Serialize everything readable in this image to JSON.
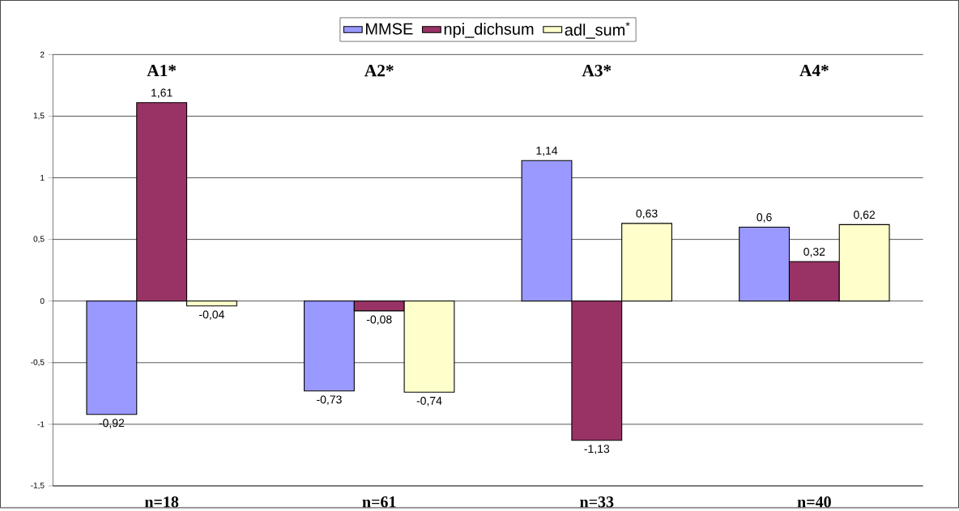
{
  "chart_data": {
    "type": "bar",
    "categories": [
      "n=18",
      "n=61",
      "n=33",
      "n=40"
    ],
    "series": [
      {
        "name": "MMSE",
        "color": "#9999ff",
        "values": [
          -0.92,
          -0.73,
          1.14,
          0.6
        ],
        "value_labels": [
          "-0,92",
          "-0,73",
          "1,14",
          "0,6"
        ]
      },
      {
        "name": "npi_dichsum",
        "color": "#993366",
        "values": [
          1.61,
          -0.08,
          -1.13,
          0.32
        ],
        "value_labels": [
          "1,61",
          "-0,08",
          "-1,13",
          "0,32"
        ]
      },
      {
        "name": "adl_sum$^{*}$",
        "color": "#ffffcc",
        "values": [
          -0.04,
          -0.74,
          0.63,
          0.62
        ],
        "value_labels": [
          "-0,04",
          "-0,74",
          "0,63",
          "0,62"
        ]
      }
    ],
    "annotations": [
      "A1*",
      "A2*",
      "A3*",
      "A4*"
    ],
    "ylim": [
      -1.5,
      2
    ],
    "yticks": [
      {
        "value": -1.5,
        "label": "-1,5"
      },
      {
        "value": -1,
        "label": "-1"
      },
      {
        "value": -0.5,
        "label": "-0,5"
      },
      0,
      {
        "value": 0.5,
        "label": "0,5"
      },
      1,
      {
        "value": 1.5,
        "label": "1,5"
      },
      2
    ],
    "grid": "y",
    "legend": "top"
  }
}
